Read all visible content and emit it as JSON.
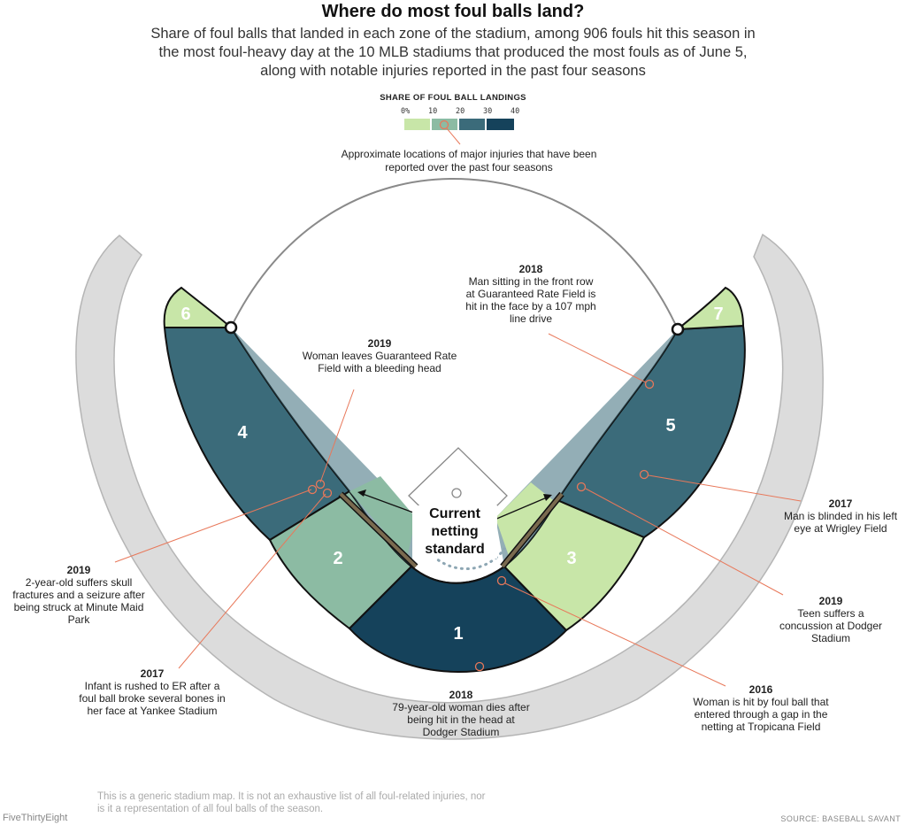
{
  "header": {
    "title": "Where do most foul balls land?",
    "subtitle": "Share of foul balls that landed in each zone of the stadium, among 906 fouls hit this season in the most foul-heavy day at the 10 MLB stadiums that produced the most fouls as of June 5, along with notable injuries reported in the past four seasons"
  },
  "legend": {
    "title": "SHARE OF FOUL BALL LANDINGS",
    "ticks": [
      "0%",
      "10",
      "20",
      "30",
      "40"
    ],
    "colors": [
      "#c8e6a8",
      "#8cbba3",
      "#3b6b7a",
      "#15425b"
    ],
    "injury_note": "Approximate locations of major injuries that have been reported over the past four seasons"
  },
  "map": {
    "zones": [
      {
        "label": "1",
        "color": "#15425b"
      },
      {
        "label": "2",
        "color": "#8cbba3"
      },
      {
        "label": "3",
        "color": "#c8e6a8"
      },
      {
        "label": "4",
        "color": "#3b6b7a"
      },
      {
        "label": "5",
        "color": "#3b6b7a"
      },
      {
        "label": "6",
        "color": "#c8e6a8"
      },
      {
        "label": "7",
        "color": "#c8e6a8"
      }
    ],
    "netting_label": "Current netting standard",
    "colors": {
      "stands": "#dcdcdc",
      "injury_marker": "#e8785a",
      "netting": "#7a6a4f"
    }
  },
  "injuries": [
    {
      "year": "2019",
      "text": "Woman leaves Guaranteed Rate Field with a bleeding head"
    },
    {
      "year": "2018",
      "text": "Man sitting in the front row at Guaranteed Rate Field is hit in the face by a 107 mph line drive"
    },
    {
      "year": "2017",
      "text": "Man is blinded in his left eye at Wrigley Field"
    },
    {
      "year": "2019",
      "text": "Teen suffers a concussion at Dodger Stadium"
    },
    {
      "year": "2016",
      "text": "Woman is hit by foul ball that entered through a gap in the netting at Tropicana Field"
    },
    {
      "year": "2018",
      "text": "79-year-old woman dies after being hit in the head at Dodger Stadium"
    },
    {
      "year": "2017",
      "text": "Infant is rushed to ER after a foul ball broke several bones in her face at Yankee Stadium"
    },
    {
      "year": "2019",
      "text": "2-year-old suffers skull fractures and a seizure after being struck at Minute Maid Park"
    }
  ],
  "footer": {
    "note": "This is a generic stadium map. It is not an exhaustive list of all foul-related injuries, nor is it a representation of all foul balls of the season.",
    "brand": "FiveThirtyEight",
    "source": "SOURCE: BASEBALL SAVANT"
  }
}
